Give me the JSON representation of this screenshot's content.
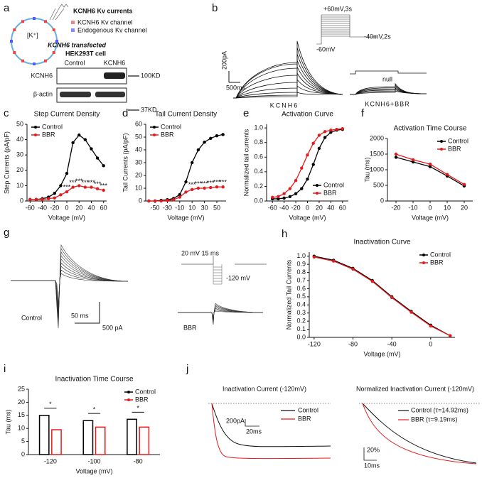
{
  "panel_labels": [
    "a",
    "b",
    "c",
    "d",
    "e",
    "f",
    "g",
    "h",
    "i",
    "j"
  ],
  "panel_a": {
    "title": "KCNH6 Kv currents",
    "ion": "[K⁺]",
    "legend": [
      "KCNH6 Kv channel",
      "Endogenous Kv channel"
    ],
    "cell": [
      "KCNH6 transfected",
      "HEK293T cell"
    ],
    "blot_lanes": [
      "Control",
      "KCNH6"
    ],
    "blot_rows": [
      "KCNH6",
      "β-actin"
    ],
    "markers": [
      "100KD",
      "37KD"
    ]
  },
  "panel_b": {
    "scale_y": "200pA",
    "scale_x": "500ms",
    "label": "KCNH6",
    "step": "+60mV,3s",
    "tail": "-40mV,2s",
    "hold": "-60mV",
    "null_label": "null",
    "label_bbr": "KCNH6+BBR"
  },
  "panel_g": {
    "protocol": "20 mV 15 ms",
    "hold": "-120 mV",
    "scale_x": "50 ms",
    "scale_y": "500 pA",
    "control": "Control",
    "bbr": "BBR"
  },
  "panel_j": {
    "left_title": "Inactivation Current (-120mV)",
    "left_legend": [
      "Control",
      "BBR"
    ],
    "left_scale_y": "200pA",
    "left_scale_x": "20ms",
    "right_title": "Normalized Inactivation Current (-120mV)",
    "right_legend": [
      "Control (τ=14.92ms)",
      "BBR (τ=9.19ms)"
    ],
    "right_scale_y": "20%",
    "right_scale_x": "10ms"
  },
  "chart_data": [
    {
      "type": "line",
      "title": "Step Current Density",
      "xlabel": "Voltage (mV)",
      "ylabel": "Step Currents (pA/pF)",
      "x": [
        -60,
        -50,
        -40,
        -30,
        -20,
        -10,
        0,
        10,
        20,
        30,
        40,
        50,
        60
      ],
      "series": [
        {
          "name": "Control",
          "color": "#000000",
          "values": [
            1,
            1,
            1.5,
            2.5,
            5,
            10,
            18,
            38,
            43,
            40,
            34,
            28,
            23
          ]
        },
        {
          "name": "BBR",
          "color": "#e41a1c",
          "values": [
            1,
            1,
            1,
            1.5,
            2,
            4,
            6,
            9,
            10,
            9,
            9,
            8,
            7
          ]
        }
      ],
      "significance": [
        null,
        null,
        null,
        null,
        null,
        null,
        "***",
        "***",
        "***",
        "***",
        "***",
        "***",
        "***"
      ],
      "xlim": [
        -65,
        65
      ],
      "xticks": [
        -60,
        -40,
        -20,
        0,
        20,
        40,
        60
      ],
      "ylim": [
        0,
        50
      ],
      "yticks": [
        0,
        10,
        20,
        30,
        40,
        50
      ],
      "legend": "upper left"
    },
    {
      "type": "line",
      "title": "Tail Current Density",
      "xlabel": "Voltage (mV)",
      "ylabel": "Tail Currents (pA/pF)",
      "x": [
        -60,
        -50,
        -40,
        -30,
        -20,
        -10,
        0,
        10,
        20,
        30,
        40,
        50,
        60
      ],
      "series": [
        {
          "name": "Control",
          "color": "#000000",
          "values": [
            0,
            0,
            0.5,
            1,
            2,
            5,
            15,
            30,
            40,
            46,
            49,
            51,
            52
          ]
        },
        {
          "name": "BBR",
          "color": "#e41a1c",
          "values": [
            0,
            0,
            0,
            0.5,
            1,
            3,
            7,
            9,
            10,
            10,
            10.5,
            11,
            11
          ]
        }
      ],
      "significance": [
        null,
        null,
        null,
        null,
        null,
        null,
        null,
        "***",
        "***",
        "***",
        "***",
        "***",
        "***"
      ],
      "xlim": [
        -65,
        65
      ],
      "xticks": [
        -50,
        -30,
        -10,
        10,
        30,
        50
      ],
      "ylim": [
        0,
        60
      ],
      "yticks": [
        0,
        10,
        20,
        30,
        40,
        50,
        60
      ],
      "legend": "upper left"
    },
    {
      "type": "line",
      "title": "Activation Curve",
      "xlabel": "Voltage (mV)",
      "ylabel": "Normalized tail currents",
      "x": [
        -60,
        -50,
        -40,
        -30,
        -20,
        -10,
        0,
        10,
        20,
        30,
        40,
        50,
        60
      ],
      "series": [
        {
          "name": "Control",
          "color": "#000000",
          "values": [
            0.03,
            0.03,
            0.04,
            0.06,
            0.1,
            0.17,
            0.3,
            0.5,
            0.72,
            0.87,
            0.94,
            0.97,
            0.98
          ]
        },
        {
          "name": "BBR",
          "color": "#e41a1c",
          "values": [
            0.05,
            0.06,
            0.1,
            0.17,
            0.28,
            0.45,
            0.63,
            0.79,
            0.9,
            0.95,
            0.97,
            0.98,
            0.99
          ]
        }
      ],
      "xlim": [
        -70,
        70
      ],
      "xticks": [
        -60,
        -40,
        -20,
        0,
        20,
        40,
        60
      ],
      "ylim": [
        0,
        1.05
      ],
      "yticks": [
        {
          "value": 0,
          "label": "0.0"
        },
        0.2,
        0.4,
        0.6,
        0.8,
        {
          "value": 1,
          "label": "1.0"
        }
      ],
      "legend": "lower right"
    },
    {
      "type": "line",
      "title": "Activation Time Course",
      "xlabel": "Voltage (mV)",
      "ylabel": "Tau (ms)",
      "x": [
        -20,
        -10,
        0,
        10,
        20
      ],
      "series": [
        {
          "name": "Control",
          "color": "#000000",
          "values": [
            1400,
            1250,
            1100,
            800,
            480
          ]
        },
        {
          "name": "BBR",
          "color": "#e41a1c",
          "values": [
            1500,
            1320,
            1180,
            850,
            530
          ]
        }
      ],
      "xlim": [
        -25,
        25
      ],
      "xticks": [
        -20,
        -10,
        0,
        10,
        20
      ],
      "ylim": [
        0,
        2000
      ],
      "yticks": [
        0,
        500,
        1000,
        1500,
        2000
      ],
      "legend": "upper right"
    },
    {
      "type": "line",
      "title": "Inactivation Curve",
      "xlabel": "Voltage (mV)",
      "ylabel": "Normalized Tail Currents",
      "x": [
        -120,
        -100,
        -80,
        -60,
        -40,
        -20,
        0,
        20
      ],
      "series": [
        {
          "name": "Control",
          "color": "#000000",
          "values": [
            1.0,
            0.95,
            0.85,
            0.7,
            0.5,
            0.32,
            0.15,
            0.02
          ]
        },
        {
          "name": "BBR",
          "color": "#e41a1c",
          "values": [
            0.99,
            0.94,
            0.84,
            0.69,
            0.49,
            0.31,
            0.14,
            0.02
          ]
        }
      ],
      "xlim": [
        -125,
        25
      ],
      "xticks": [
        -120,
        -80,
        -40,
        0
      ],
      "ylim": [
        0,
        1.05
      ],
      "yticks": [
        {
          "value": 0,
          "label": "0.0"
        },
        0.1,
        0.2,
        0.3,
        0.4,
        0.5,
        0.6,
        0.7,
        0.8,
        0.9,
        {
          "value": 1,
          "label": "1.0"
        }
      ],
      "legend": "upper right"
    },
    {
      "type": "bar",
      "title": "Inactivation Time Course",
      "xlabel": "Voltage (mV)",
      "ylabel": "Tau (ms)",
      "categories": [
        "-120",
        "-100",
        "-80"
      ],
      "series": [
        {
          "name": "Control",
          "color": "#000000",
          "values": [
            15,
            13,
            13.5
          ]
        },
        {
          "name": "BBR",
          "color": "#e41a1c",
          "values": [
            9.5,
            10.5,
            10.5
          ]
        }
      ],
      "significance": [
        "*",
        "*",
        "*"
      ],
      "ylim": [
        0,
        25
      ],
      "yticks": [
        0,
        5,
        10,
        15,
        20,
        25
      ],
      "legend": "upper right"
    }
  ]
}
